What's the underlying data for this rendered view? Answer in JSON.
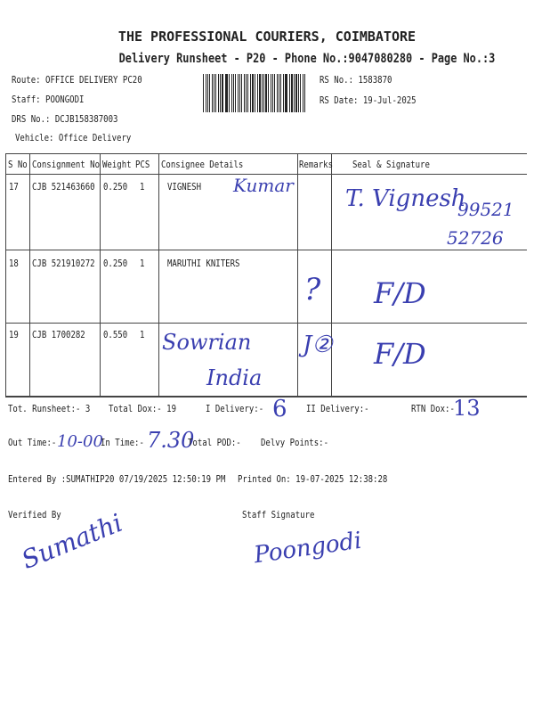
{
  "header": {
    "company": "THE PROFESSIONAL COURIERS, COIMBATORE",
    "subtitle": "Delivery Runsheet - P20 - Phone No.:9047080280 - Page No.:3",
    "route": "Route: OFFICE DELIVERY PC20",
    "staff": "Staff: POONGODI",
    "drs_no": "DRS No.: DCJB158387003",
    "vehicle": "Vehicle: Office Delivery",
    "rs_no": "RS No.: 1583870",
    "rs_date": "RS Date: 19-Jul-2025"
  },
  "table": {
    "columns": [
      "S No",
      "Consignment No",
      "Weight",
      "PCS",
      "Consignee Details",
      "Remarks",
      "Seal & Signature"
    ],
    "rows": [
      {
        "sno": "17",
        "consignment": "CJB 521463660",
        "weight": "0.250",
        "pcs": "1",
        "consignee": "VIGNESH",
        "consignee_hw": "Kumar",
        "remarks_hw": "",
        "seal_hw": "T. Vignesh",
        "seal_hw2": "99521",
        "seal_hw3": "52726"
      },
      {
        "sno": "18",
        "consignment": "CJB 521910272",
        "weight": "0.250",
        "pcs": "1",
        "consignee": "MARUTHI KNITERS",
        "consignee_hw": "",
        "remarks_hw": "?",
        "seal_hw": "F/D",
        "seal_hw2": "",
        "seal_hw3": ""
      },
      {
        "sno": "19",
        "consignment": "CJB 1700282",
        "weight": "0.550",
        "pcs": "1",
        "consignee": "",
        "consignee_hw": "Sowrian",
        "consignee_hw2": "India",
        "remarks_hw": "J②",
        "seal_hw": "F/D",
        "seal_hw2": "",
        "seal_hw3": ""
      }
    ]
  },
  "summary": {
    "tot_runsheet": "Tot. Runsheet:- 3",
    "total_dox": "Total Dox:-   19",
    "i_delivery": "I Delivery:-",
    "i_delivery_hw": "6",
    "ii_delivery": "II Delivery:-",
    "rtn_dox": "RTN Dox:-",
    "rtn_dox_hw": "13",
    "out_time": "Out Time:-",
    "out_time_hw": "10-00",
    "in_time": "In Time:-",
    "in_time_hw": "7.30",
    "total_pod": "Total POD:-",
    "delvy_points": "Delvy Points:-",
    "entered_by": "Entered By :SUMATHIP20 07/19/2025 12:50:19 PM",
    "printed_on": "Printed On: 19-07-2025 12:38:28"
  },
  "footer": {
    "verified_by": "Verified By",
    "staff_signature": "Staff Signature",
    "verified_signature_hw": "Sumathi",
    "staff_signature_hw": "Poongodi"
  },
  "colors": {
    "ink": "#3a3fb0",
    "print": "#222222"
  }
}
